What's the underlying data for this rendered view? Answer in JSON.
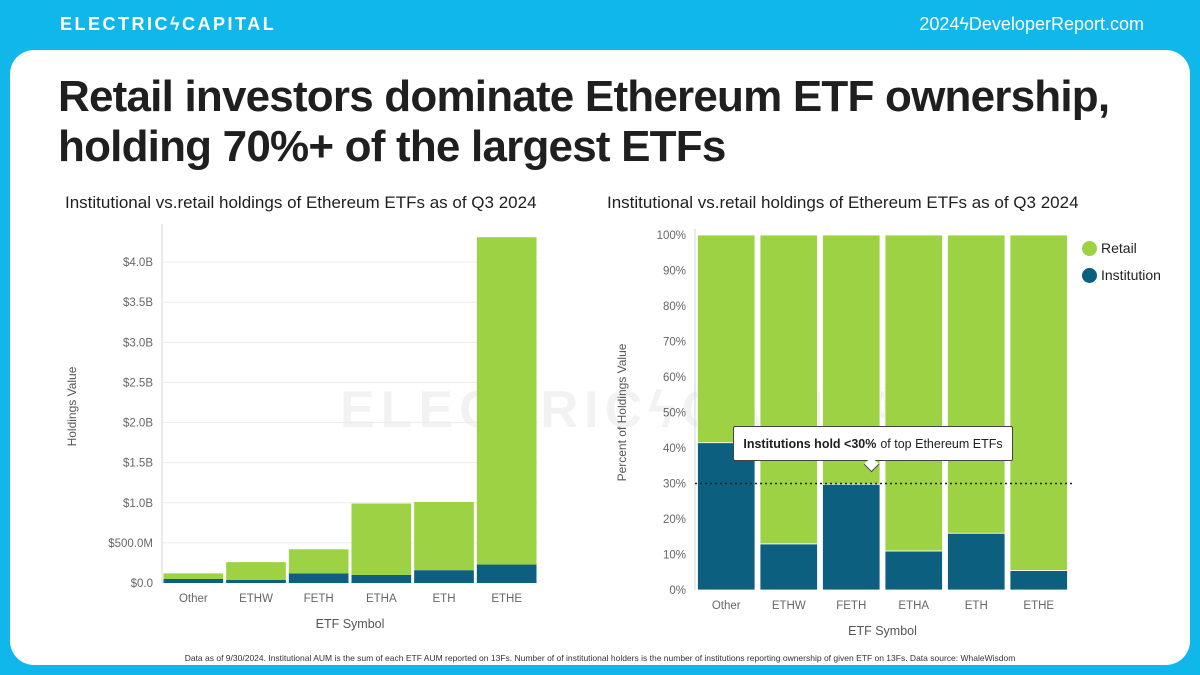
{
  "header": {
    "brand": "ELECTRICϟCAPITAL",
    "site": "2024ϟDeveloperReport.com"
  },
  "headline": "Retail investors dominate Ethereum ETF ownership, holding 70%+ of the largest ETFs",
  "watermark": "ELECTRICϟCAPITAL",
  "colors": {
    "retail": "#9dd244",
    "institution": "#0d5f80",
    "accent": "#10b7ea"
  },
  "legend": [
    {
      "label": "Retail",
      "color": "#9dd244"
    },
    {
      "label": "Institution",
      "color": "#0d5f80"
    }
  ],
  "callout": {
    "bold": "Institutions hold <30%",
    "rest": "of top Ethereum ETFs"
  },
  "footnote": "Data as of 9/30/2024. Institutional AUM is the sum of each ETF AUM reported on 13Fs. Number of of institutional holders is the number of institutions reporting ownership of given ETF on 13Fs. Data source: WhaleWisdom",
  "chart_data": [
    {
      "type": "bar",
      "stacked": true,
      "title": "Institutional vs.retail holdings of Ethereum ETFs as of Q3 2024",
      "xlabel": "ETF Symbol",
      "ylabel": "Holdings Value",
      "categories": [
        "Other",
        "ETHW",
        "FETH",
        "ETHA",
        "ETH",
        "ETHE"
      ],
      "series": [
        {
          "name": "Institution",
          "values": [
            0.05,
            0.04,
            0.12,
            0.1,
            0.16,
            0.23
          ]
        },
        {
          "name": "Retail",
          "values": [
            0.07,
            0.22,
            0.3,
            0.89,
            0.85,
            4.08
          ]
        }
      ],
      "ylim": [
        0,
        4.4
      ],
      "yticks": [
        0,
        0.5,
        1.0,
        1.5,
        2.0,
        2.5,
        3.0,
        3.5,
        4.0
      ],
      "ytick_labels": [
        "$0.0",
        "$500.0M",
        "$1.0B",
        "$1.5B",
        "$2.0B",
        "$2.5B",
        "$3.0B",
        "$3.5B",
        "$4.0B"
      ],
      "grid": true
    },
    {
      "type": "bar",
      "stacked": true,
      "percent": true,
      "title": "Institutional vs.retail holdings of Ethereum ETFs as of Q3 2024",
      "xlabel": "ETF Symbol",
      "ylabel": "Percent of Holdings Value",
      "categories": [
        "Other",
        "ETHW",
        "FETH",
        "ETHA",
        "ETH",
        "ETHE"
      ],
      "series": [
        {
          "name": "Institution",
          "values": [
            41.5,
            13,
            29.8,
            11,
            16,
            5.5
          ]
        },
        {
          "name": "Retail",
          "values": [
            58.5,
            87,
            70.2,
            89,
            84,
            94.5
          ]
        }
      ],
      "ylim": [
        0,
        100
      ],
      "yticks": [
        0,
        10,
        20,
        30,
        40,
        50,
        60,
        70,
        80,
        90,
        100
      ],
      "ytick_labels": [
        "0%",
        "10%",
        "20%",
        "30%",
        "40%",
        "50%",
        "60%",
        "70%",
        "80%",
        "90%",
        "100%"
      ],
      "reference_line": 30,
      "legend": "right"
    }
  ]
}
